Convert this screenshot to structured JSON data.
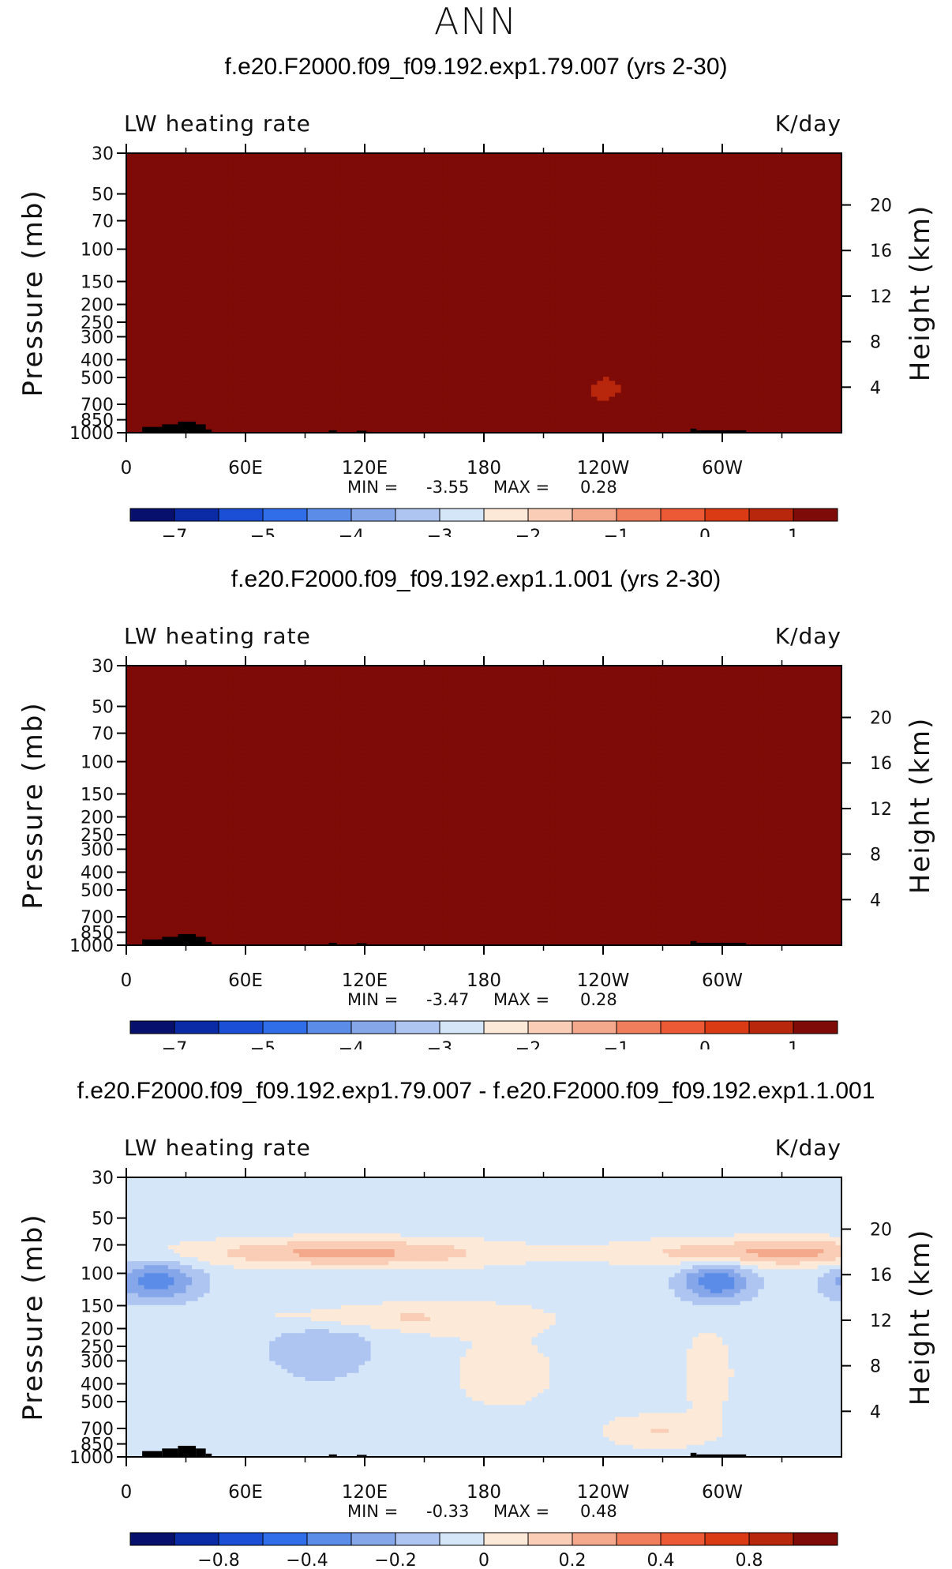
{
  "page": {
    "title": "ANN"
  },
  "colors": {
    "terrain": "#000000",
    "absolute_scale": [
      "#08106e",
      "#0a2aa6",
      "#1a4fd6",
      "#2f6ee8",
      "#5b8ce8",
      "#86a6ea",
      "#aec4f1",
      "#d6e6f9",
      "#fde9d8",
      "#f9cdb6",
      "#f4a88c",
      "#f07e5d",
      "#ec5a35",
      "#db3b14",
      "#b8260c",
      "#7e0b07"
    ],
    "difference_scale": [
      "#08106e",
      "#0a2aa6",
      "#1a4fd6",
      "#2f6ee8",
      "#5b8ce8",
      "#86a6ea",
      "#aec4f1",
      "#d6e6f9",
      "#fde9d8",
      "#f9cdb6",
      "#f4a88c",
      "#f07e5d",
      "#ec5a35",
      "#db3b14",
      "#b8260c",
      "#7e0b07"
    ]
  },
  "chart_data": [
    {
      "type": "heatmap",
      "title": "f.e20.F2000.f09_f09.192.exp1.79.007 (yrs 2-30)",
      "variable_label": "LW heating rate",
      "units": "K/day",
      "xlabel": "",
      "ylabel": "Pressure (mb)",
      "ylabel_right": "Height (km)",
      "x_ticks": [
        "0",
        "60E",
        "120E",
        "180",
        "120W",
        "60W"
      ],
      "x_tick_lon": [
        0,
        60,
        120,
        180,
        240,
        300
      ],
      "x_range": [
        0,
        360
      ],
      "y_ticks": [
        "30",
        "50",
        "70",
        "100",
        "150",
        "200",
        "250",
        "300",
        "400",
        "500",
        "700",
        "850",
        "1000"
      ],
      "y_tick_p": [
        30,
        50,
        70,
        100,
        150,
        200,
        250,
        300,
        400,
        500,
        700,
        850,
        1000
      ],
      "y_range": [
        30,
        1000
      ],
      "height_ticks": [
        "20",
        "16",
        "12",
        "8",
        "4"
      ],
      "height_tick_km": [
        20,
        16,
        12,
        8,
        4
      ],
      "min_label": "MIN =",
      "min_value": "-3.55",
      "max_label": "MAX =",
      "max_value": "0.28",
      "colorbar_labels": [
        "-7",
        "-5",
        "-4",
        "-3",
        "-2",
        "-1",
        "0",
        "1"
      ],
      "colorbar_label_slots": [
        1,
        3,
        5,
        7,
        9,
        11,
        13,
        15
      ],
      "contour_levels": [
        -8,
        -7,
        -6,
        -5,
        -4.5,
        -4,
        -3.5,
        -3,
        -2.5,
        -2,
        -1.5,
        -1,
        -0.5,
        0,
        0.5,
        1
      ],
      "field_key": "exp79",
      "scale_key": "absolute_scale"
    },
    {
      "type": "heatmap",
      "title": "f.e20.F2000.f09_f09.192.exp1.1.001 (yrs 2-30)",
      "variable_label": "LW heating rate",
      "units": "K/day",
      "xlabel": "",
      "ylabel": "Pressure (mb)",
      "ylabel_right": "Height (km)",
      "x_ticks": [
        "0",
        "60E",
        "120E",
        "180",
        "120W",
        "60W"
      ],
      "x_tick_lon": [
        0,
        60,
        120,
        180,
        240,
        300
      ],
      "x_range": [
        0,
        360
      ],
      "y_ticks": [
        "30",
        "50",
        "70",
        "100",
        "150",
        "200",
        "250",
        "300",
        "400",
        "500",
        "700",
        "850",
        "1000"
      ],
      "y_tick_p": [
        30,
        50,
        70,
        100,
        150,
        200,
        250,
        300,
        400,
        500,
        700,
        850,
        1000
      ],
      "y_range": [
        30,
        1000
      ],
      "height_ticks": [
        "20",
        "16",
        "12",
        "8",
        "4"
      ],
      "height_tick_km": [
        20,
        16,
        12,
        8,
        4
      ],
      "min_label": "MIN =",
      "min_value": "-3.47",
      "max_label": "MAX =",
      "max_value": "0.28",
      "colorbar_labels": [
        "-7",
        "-5",
        "-4",
        "-3",
        "-2",
        "-1",
        "0",
        "1"
      ],
      "colorbar_label_slots": [
        1,
        3,
        5,
        7,
        9,
        11,
        13,
        15
      ],
      "contour_levels": [
        -8,
        -7,
        -6,
        -5,
        -4.5,
        -4,
        -3.5,
        -3,
        -2.5,
        -2,
        -1.5,
        -1,
        -0.5,
        0,
        0.5,
        1
      ],
      "field_key": "exp1",
      "scale_key": "absolute_scale"
    },
    {
      "type": "heatmap",
      "title": "f.e20.F2000.f09_f09.192.exp1.79.007 - f.e20.F2000.f09_f09.192.exp1.1.001",
      "variable_label": "LW heating rate",
      "units": "K/day",
      "xlabel": "",
      "ylabel": "Pressure (mb)",
      "ylabel_right": "Height (km)",
      "x_ticks": [
        "0",
        "60E",
        "120E",
        "180",
        "120W",
        "60W"
      ],
      "x_tick_lon": [
        0,
        60,
        120,
        180,
        240,
        300
      ],
      "x_range": [
        0,
        360
      ],
      "y_ticks": [
        "30",
        "50",
        "70",
        "100",
        "150",
        "200",
        "250",
        "300",
        "400",
        "500",
        "700",
        "850",
        "1000"
      ],
      "y_tick_p": [
        30,
        50,
        70,
        100,
        150,
        200,
        250,
        300,
        400,
        500,
        700,
        850,
        1000
      ],
      "y_range": [
        30,
        1000
      ],
      "height_ticks": [
        "20",
        "16",
        "12",
        "8",
        "4"
      ],
      "height_tick_km": [
        20,
        16,
        12,
        8,
        4
      ],
      "min_label": "MIN =",
      "min_value": "-0.33",
      "max_label": "MAX =",
      "max_value": "0.48",
      "colorbar_labels": [
        "-0.8",
        "-0.4",
        "-0.2",
        "0",
        "0.2",
        "0.4",
        "0.8"
      ],
      "colorbar_label_slots": [
        2,
        4,
        6,
        8,
        10,
        12,
        14
      ],
      "contour_levels": [
        -1,
        -0.8,
        -0.6,
        -0.4,
        -0.3,
        -0.2,
        -0.1,
        0,
        0.1,
        0.2,
        0.3,
        0.4,
        0.6,
        0.8,
        1
      ],
      "field_key": "diff",
      "scale_key": "difference_scale"
    }
  ]
}
